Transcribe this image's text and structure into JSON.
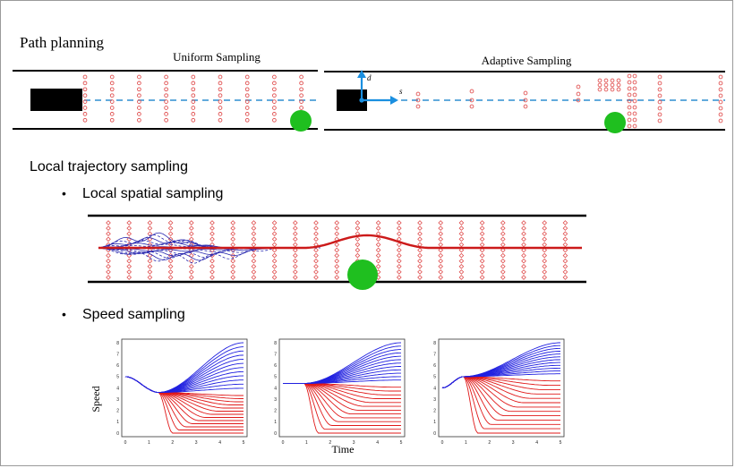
{
  "path_planning": {
    "title": "Path planning",
    "uniform_label": "Uniform Sampling",
    "adaptive_label": "Adaptive Sampling",
    "axis_d": "d",
    "axis_s": "s"
  },
  "local_sampling": {
    "title": "Local trajectory sampling",
    "bullet_spatial": "Local spatial sampling",
    "bullet_speed": "Speed sampling",
    "bullet_glyph": "•"
  },
  "speed_plots": {
    "y_label": "Speed",
    "x_label": "Time",
    "x_ticks": [
      "0",
      "1",
      "2",
      "3",
      "4",
      "5"
    ],
    "y_ticks": [
      "0",
      "1",
      "2",
      "3",
      "4",
      "5",
      "6",
      "7",
      "8"
    ],
    "colors": {
      "accel": "#2020e0",
      "decel": "#e01818"
    }
  },
  "colors": {
    "obstacle": "#1fbf1f",
    "sample": "#e05050",
    "centerline": "#2f8fd0",
    "vehicle": "#000000",
    "axis_arrow": "#1a8fe0",
    "trajectory_red": "#cc1a1a",
    "trajectory_blue": "#2a2ab0"
  }
}
